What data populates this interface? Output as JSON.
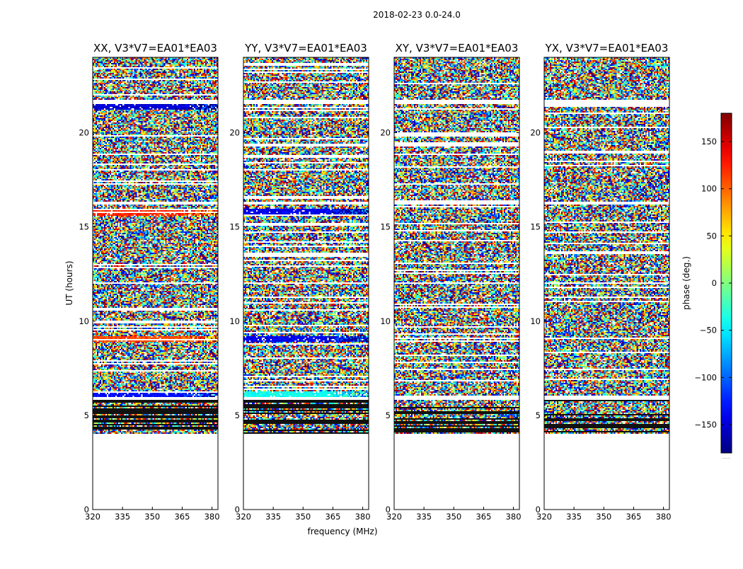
{
  "suptitle": "2018-02-23 0.0-24.0",
  "chart_data": {
    "type": "heatmap",
    "title": "2018-02-23 0.0-24.0",
    "xlabel": "frequency (MHz)",
    "ylabel": "UT (hours)",
    "xlim": [
      320,
      383
    ],
    "ylim": [
      0,
      24
    ],
    "xticks": [
      320,
      335,
      350,
      365,
      380
    ],
    "yticks": [
      0,
      5,
      10,
      15,
      20
    ],
    "data_coverage_hours": [
      4.0,
      24.0
    ],
    "panels": [
      {
        "title": "XX, V3*V7=EA01*EA03",
        "polarization": "XX"
      },
      {
        "title": "YY, V3*V7=EA01*EA03",
        "polarization": "YY"
      },
      {
        "title": "XY, V3*V7=EA01*EA03",
        "polarization": "XY"
      },
      {
        "title": "YX, V3*V7=EA01*EA03",
        "polarization": "YX"
      }
    ],
    "colorbar": {
      "label": "phase (deg.)",
      "range": [
        -180,
        180
      ],
      "ticks": [
        -150,
        -100,
        -50,
        0,
        50,
        100,
        150
      ],
      "colormap": "jet",
      "overflow_label": "......"
    },
    "gap_bands_hours": [
      [
        21.55,
        21.75
      ],
      [
        16.2,
        16.35
      ],
      [
        11.95,
        12.05
      ],
      [
        5.85,
        5.95
      ]
    ],
    "coherent_bands_hours": [
      {
        "panel": 0,
        "ut": 21.4,
        "phase_deg": -150
      },
      {
        "panel": 0,
        "ut": 15.75,
        "phase_deg": 120
      },
      {
        "panel": 0,
        "ut": 9.05,
        "phase_deg": 110
      },
      {
        "panel": 0,
        "ut": 6.1,
        "phase_deg": -130
      },
      {
        "panel": 1,
        "ut": 15.75,
        "phase_deg": -140
      },
      {
        "panel": 1,
        "ut": 9.05,
        "phase_deg": -140
      },
      {
        "panel": 1,
        "ut": 6.1,
        "phase_deg": -40
      }
    ]
  }
}
